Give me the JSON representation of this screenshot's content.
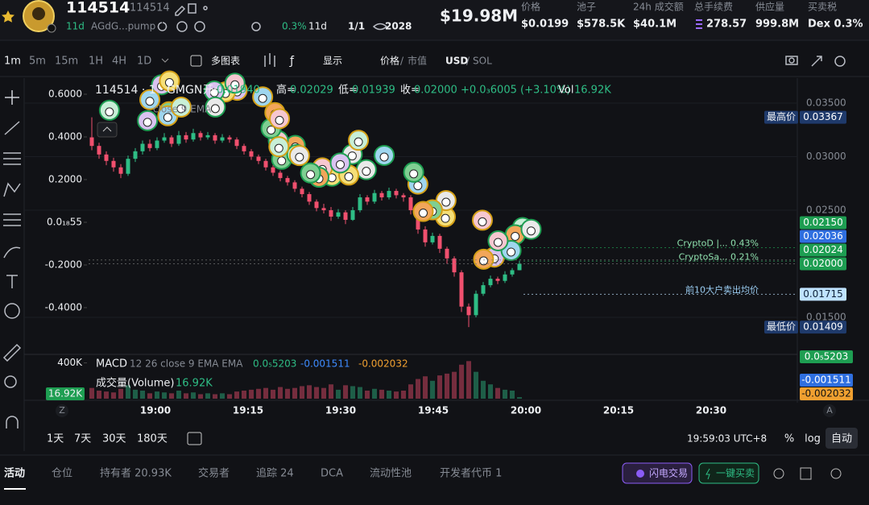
{
  "header": {
    "symbol": "114514",
    "name": "114514",
    "age": "11d",
    "address": "AGdG...pump",
    "holder_pct": "0.3%",
    "pool_age": "11d",
    "dev_ratio": "1/1",
    "watchers": "2028",
    "market_cap": "$19.98M",
    "stats": [
      {
        "label": "价格",
        "value": "$0.0199"
      },
      {
        "label": "池子",
        "value": "$578.5K"
      },
      {
        "label": "24h 成交额",
        "value": "$40.1M"
      },
      {
        "label": "总手续费",
        "value": "278.57"
      },
      {
        "label": "供应量",
        "value": "999.8M"
      },
      {
        "label": "买卖税",
        "value": "Dex 0.3%"
      }
    ]
  },
  "toolbar": {
    "intervals": [
      "1m",
      "5m",
      "15m",
      "1H",
      "4H",
      "1D"
    ],
    "multi_chart": "多图表",
    "display": "显示",
    "price": "价格",
    "separator": "/",
    "market_cap": "市值",
    "currency": "USD",
    "alt_currency": "SOL"
  },
  "legend_bar": {
    "title": "114514 · 1 · GMGN",
    "open_label": "开=",
    "open": "0.01940",
    "high_label": "高=",
    "high": "0.02029",
    "low_label": "低=",
    "low": "0.01939",
    "close_label": "收=",
    "close": "0.02000",
    "change": "+0.0₃6005 (+3.10%)",
    "volume_label": "Vol",
    "volume": "16.92K",
    "indicator": "close 9 EMA",
    "macd_name": "MACD",
    "macd_params": "12 26 close 9 EMA EMA",
    "macd": "0.0₅5203",
    "signal": "-0.001511",
    "histogram": "-0.002032",
    "volume_name": "成交量(Volume)"
  },
  "chart_data": {
    "type": "candlestick",
    "up_color": "#2ebd85",
    "down_color": "#f0506e",
    "open": [
      0.0318,
      0.031,
      0.0302,
      0.0296,
      0.029,
      0.0284,
      0.0298,
      0.0305,
      0.0312,
      0.0308,
      0.0315,
      0.0318,
      0.0312,
      0.032,
      0.0316,
      0.0322,
      0.0318,
      0.032,
      0.0315,
      0.0318,
      0.0316,
      0.031,
      0.0305,
      0.03,
      0.0296,
      0.029,
      0.0285,
      0.028,
      0.0276,
      0.027,
      0.0265,
      0.0258,
      0.0252,
      0.025,
      0.0244,
      0.0248,
      0.0241,
      0.025,
      0.0262,
      0.0258,
      0.0266,
      0.0262,
      0.0268,
      0.0264,
      0.0262,
      0.025,
      0.0232,
      0.022,
      0.0226,
      0.0214,
      0.0205,
      0.0192,
      0.016,
      0.0152,
      0.0172,
      0.018,
      0.0186,
      0.0184,
      0.019,
      0.0194
    ],
    "high": [
      0.03367,
      0.0313,
      0.0305,
      0.0299,
      0.0293,
      0.0301,
      0.0308,
      0.0315,
      0.0316,
      0.0318,
      0.0322,
      0.032,
      0.0324,
      0.0323,
      0.0326,
      0.0324,
      0.0323,
      0.0322,
      0.0321,
      0.032,
      0.0318,
      0.0312,
      0.0307,
      0.0302,
      0.0298,
      0.0292,
      0.0287,
      0.0282,
      0.0278,
      0.0272,
      0.0267,
      0.026,
      0.0256,
      0.0253,
      0.0251,
      0.025,
      0.0253,
      0.0265,
      0.0264,
      0.0269,
      0.0268,
      0.0271,
      0.027,
      0.0266,
      0.0264,
      0.0252,
      0.0235,
      0.0229,
      0.0228,
      0.0216,
      0.0207,
      0.0194,
      0.0163,
      0.0175,
      0.0183,
      0.0189,
      0.0188,
      0.0193,
      0.0196,
      0.02029
    ],
    "low": [
      0.0306,
      0.0298,
      0.0292,
      0.0286,
      0.028,
      0.0282,
      0.0295,
      0.0302,
      0.0305,
      0.0306,
      0.0313,
      0.0309,
      0.031,
      0.0313,
      0.0314,
      0.0315,
      0.0316,
      0.0312,
      0.0313,
      0.0313,
      0.0307,
      0.0302,
      0.0297,
      0.0293,
      0.0287,
      0.0282,
      0.0277,
      0.0273,
      0.0267,
      0.0262,
      0.0255,
      0.0249,
      0.0247,
      0.024,
      0.0242,
      0.0237,
      0.024,
      0.0248,
      0.0255,
      0.0256,
      0.0259,
      0.026,
      0.0261,
      0.0258,
      0.0246,
      0.0228,
      0.0216,
      0.0218,
      0.021,
      0.02,
      0.0188,
      0.0155,
      0.01409,
      0.015,
      0.017,
      0.0178,
      0.0181,
      0.0182,
      0.0188,
      0.01939
    ],
    "close": [
      0.031,
      0.0302,
      0.0296,
      0.029,
      0.0284,
      0.0298,
      0.0305,
      0.0312,
      0.0308,
      0.0315,
      0.0318,
      0.0312,
      0.032,
      0.0316,
      0.0322,
      0.0318,
      0.032,
      0.0315,
      0.0318,
      0.0316,
      0.031,
      0.0305,
      0.03,
      0.0296,
      0.029,
      0.0285,
      0.028,
      0.0276,
      0.027,
      0.0265,
      0.0258,
      0.0252,
      0.025,
      0.0244,
      0.0248,
      0.0241,
      0.025,
      0.0262,
      0.0258,
      0.0266,
      0.0262,
      0.0268,
      0.0264,
      0.0262,
      0.025,
      0.0232,
      0.022,
      0.0226,
      0.0214,
      0.0205,
      0.0192,
      0.016,
      0.0152,
      0.0172,
      0.018,
      0.0186,
      0.0184,
      0.019,
      0.0194,
      0.02
    ],
    "volume": [
      120000,
      90000,
      80000,
      70000,
      110000,
      150000,
      100000,
      90000,
      60000,
      80000,
      70000,
      60000,
      90000,
      60000,
      70000,
      50000,
      60000,
      50000,
      60000,
      50000,
      80000,
      90000,
      100000,
      110000,
      120000,
      100000,
      130000,
      110000,
      120000,
      140000,
      150000,
      130000,
      120000,
      160000,
      100000,
      150000,
      140000,
      130000,
      90000,
      110000,
      100000,
      90000,
      80000,
      90000,
      160000,
      220000,
      250000,
      200000,
      260000,
      280000,
      300000,
      380000,
      420000,
      300000,
      200000,
      160000,
      120000,
      100000,
      90000,
      16920
    ],
    "ylim": [
      0.01154,
      0.03748
    ],
    "yticks": [
      {
        "value": 0.035,
        "label": "0.03500"
      },
      {
        "value": 0.03,
        "label": "0.03000"
      },
      {
        "value": 0.025,
        "label": "0.02500"
      },
      {
        "value": 0.015,
        "label": "0.01500"
      }
    ],
    "y2lim": [
      -0.619,
      0.683
    ],
    "y2ticks": [
      {
        "value": 0.6,
        "label": "0.6000"
      },
      {
        "value": 0.4,
        "label": "0.4000"
      },
      {
        "value": 0.2,
        "label": "0.2000"
      },
      {
        "value": 5.5e-20,
        "label": "0.0₁₈55"
      },
      {
        "value": -0.2,
        "label": "-0.2000"
      },
      {
        "value": -0.4,
        "label": "-0.4000"
      }
    ],
    "volume_ylim": [
      0,
      450000
    ],
    "volume_yticks": [
      {
        "value": 400000,
        "label": "400K"
      }
    ],
    "markers": [
      {
        "value": 0.03367,
        "label": "0.03367",
        "title": "最高价",
        "color": "#1f3a6b"
      },
      {
        "value": 0.0215,
        "label": "0.02150",
        "note": "CryptoD |... 0.43%",
        "color": "#1e9e52"
      },
      {
        "value": 0.02036,
        "label": "0.02036",
        "color": "#2f6fe0"
      },
      {
        "value": 0.02024,
        "label": "0.02024",
        "note": "CryptoSa... 0.21%",
        "color": "#1e9e52"
      },
      {
        "value": 0.02,
        "label": "0.02000",
        "color": "#1e9e52"
      },
      {
        "value": 0.01715,
        "label": "0.01715",
        "note": "前10大户卖出均价",
        "color": "#bfe3ff"
      },
      {
        "value": 0.01409,
        "label": "0.01409",
        "title": "最低价",
        "color": "#1f3a6b"
      }
    ],
    "time_labels": [
      "19:00",
      "19:15",
      "19:30",
      "19:45",
      "20:00",
      "20:15",
      "20:30"
    ],
    "scale_left": "Z",
    "scale_right": "A"
  },
  "bottom_bar": {
    "ranges": [
      "1天",
      "7天",
      "30天",
      "180天"
    ],
    "clock": "19:59:03 UTC+8",
    "percent": "%",
    "log": "log",
    "auto": "自动"
  },
  "tabs": [
    "活动",
    "仓位",
    "持有者 20.93K",
    "交易者",
    "追踪 24",
    "DCA",
    "流动性池",
    "开发者代币 1"
  ],
  "buttons": {
    "flash": "闪电交易",
    "quick": "一键买卖"
  }
}
